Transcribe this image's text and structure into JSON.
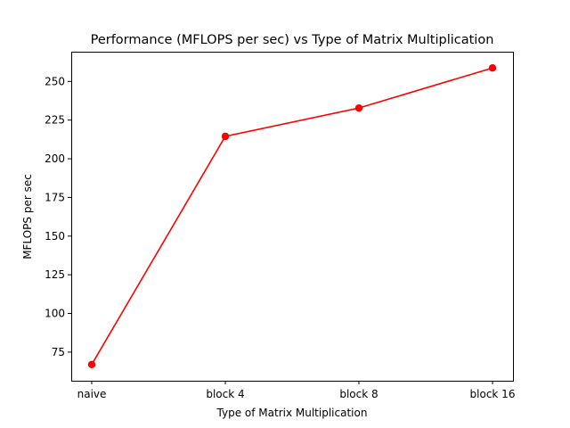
{
  "chart_data": {
    "type": "line",
    "title": "Performance (MFLOPS per sec) vs Type of Matrix Multiplication",
    "xlabel": "Type of Matrix Multiplication",
    "ylabel": "MFLOPS per sec",
    "categories": [
      "naive",
      "block 4",
      "block 8",
      "block 16"
    ],
    "series": [
      {
        "values": [
          67,
          214.5,
          232.8,
          258.7
        ],
        "color": "#ff0000",
        "marker": "circle"
      }
    ],
    "ylim": [
      56.5,
      269.2
    ],
    "yticks": [
      75,
      100,
      125,
      150,
      175,
      200,
      225,
      250
    ],
    "grid": false
  }
}
